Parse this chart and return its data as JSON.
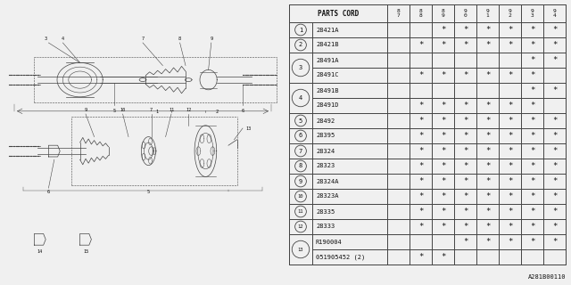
{
  "diagram_code": "A281B00110",
  "bg_color": "#f0f0f0",
  "table_bg": "#f0f0f0",
  "header": [
    "PARTS CORD",
    "8\n7",
    "8\n8",
    "8\n9",
    "9\n0",
    "9\n1",
    "9\n2",
    "9\n3",
    "9\n4"
  ],
  "rows": [
    {
      "num": "1",
      "parts": [
        "28421A"
      ],
      "marks": [
        [
          0,
          0,
          1,
          1,
          1,
          1,
          1,
          1
        ]
      ]
    },
    {
      "num": "2",
      "parts": [
        "28421B"
      ],
      "marks": [
        [
          0,
          1,
          1,
          1,
          1,
          1,
          1,
          1
        ]
      ]
    },
    {
      "num": "3",
      "parts": [
        "28491A",
        "28491C"
      ],
      "marks": [
        [
          0,
          0,
          0,
          0,
          0,
          0,
          1,
          1
        ],
        [
          0,
          1,
          1,
          1,
          1,
          1,
          1,
          0
        ]
      ]
    },
    {
      "num": "4",
      "parts": [
        "28491B",
        "28491D"
      ],
      "marks": [
        [
          0,
          0,
          0,
          0,
          0,
          0,
          1,
          1
        ],
        [
          0,
          1,
          1,
          1,
          1,
          1,
          1,
          0
        ]
      ]
    },
    {
      "num": "5",
      "parts": [
        "28492"
      ],
      "marks": [
        [
          0,
          1,
          1,
          1,
          1,
          1,
          1,
          1
        ]
      ]
    },
    {
      "num": "6",
      "parts": [
        "28395"
      ],
      "marks": [
        [
          0,
          1,
          1,
          1,
          1,
          1,
          1,
          1
        ]
      ]
    },
    {
      "num": "7",
      "parts": [
        "28324"
      ],
      "marks": [
        [
          0,
          1,
          1,
          1,
          1,
          1,
          1,
          1
        ]
      ]
    },
    {
      "num": "8",
      "parts": [
        "28323"
      ],
      "marks": [
        [
          0,
          1,
          1,
          1,
          1,
          1,
          1,
          1
        ]
      ]
    },
    {
      "num": "9",
      "parts": [
        "28324A"
      ],
      "marks": [
        [
          0,
          1,
          1,
          1,
          1,
          1,
          1,
          1
        ]
      ]
    },
    {
      "num": "10",
      "parts": [
        "28323A"
      ],
      "marks": [
        [
          0,
          1,
          1,
          1,
          1,
          1,
          1,
          1
        ]
      ]
    },
    {
      "num": "11",
      "parts": [
        "28335"
      ],
      "marks": [
        [
          0,
          1,
          1,
          1,
          1,
          1,
          1,
          1
        ]
      ]
    },
    {
      "num": "12",
      "parts": [
        "28333"
      ],
      "marks": [
        [
          0,
          1,
          1,
          1,
          1,
          1,
          1,
          1
        ]
      ]
    },
    {
      "num": "13",
      "parts": [
        "R190004",
        "051905452 (2)"
      ],
      "marks": [
        [
          0,
          0,
          0,
          1,
          1,
          1,
          1,
          1
        ],
        [
          0,
          1,
          1,
          0,
          0,
          0,
          0,
          0
        ]
      ]
    }
  ],
  "line_color": "#444444",
  "text_color": "#111111"
}
